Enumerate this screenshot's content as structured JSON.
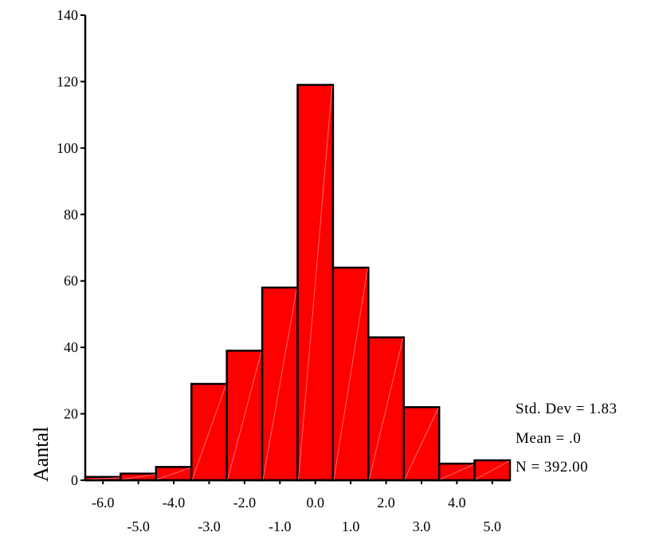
{
  "chart_data": {
    "type": "bar",
    "title": "",
    "ylabel": "Aantal",
    "xlabel": "",
    "ylim": [
      0,
      140
    ],
    "yticks": [
      0,
      20,
      40,
      60,
      80,
      100,
      120,
      140
    ],
    "xlim": [
      -6.5,
      5.5
    ],
    "xticks_top_row": [
      "-6.0",
      "-4.0",
      "-2.0",
      "0.0",
      "2.0",
      "4.0"
    ],
    "xticks_bottom_row": [
      "-5.0",
      "-3.0",
      "-1.0",
      "1.0",
      "3.0",
      "5.0"
    ],
    "bin_width": 1.0,
    "bins": [
      {
        "center": -6.0,
        "count": 1
      },
      {
        "center": -5.0,
        "count": 2
      },
      {
        "center": -4.0,
        "count": 4
      },
      {
        "center": -3.0,
        "count": 29
      },
      {
        "center": -2.0,
        "count": 39
      },
      {
        "center": -1.0,
        "count": 58
      },
      {
        "center": 0.0,
        "count": 119
      },
      {
        "center": 1.0,
        "count": 64
      },
      {
        "center": 2.0,
        "count": 43
      },
      {
        "center": 3.0,
        "count": 22
      },
      {
        "center": 4.0,
        "count": 5
      },
      {
        "center": 5.0,
        "count": 6
      }
    ],
    "bar_color": "#ff0000",
    "stats": {
      "std_dev": "Std. Dev = 1.83",
      "mean": "Mean = .0",
      "n": "N = 392.00"
    }
  }
}
